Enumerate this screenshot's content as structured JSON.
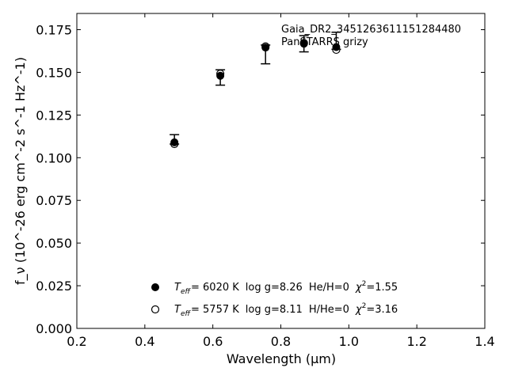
{
  "chart_data": {
    "type": "scatter",
    "xlabel": "Wavelength (μm)",
    "ylabel": "f_ν (10^-26 erg cm^-2 s^-1 Hz^-1)",
    "xlim": [
      0.2,
      1.4
    ],
    "ylim": [
      0.0,
      0.1845
    ],
    "x_ticks": [
      0.2,
      0.4,
      0.6,
      0.8,
      1.0,
      1.2,
      1.4
    ],
    "x_tick_labels": [
      "0.2",
      "0.4",
      "0.6",
      "0.8",
      "1.0",
      "1.2",
      "1.4"
    ],
    "y_ticks": [
      0.0,
      0.025,
      0.05,
      0.075,
      0.1,
      0.125,
      0.15,
      0.175
    ],
    "y_tick_labels": [
      "0.000",
      "0.025",
      "0.050",
      "0.075",
      "0.100",
      "0.125",
      "0.150",
      "0.175"
    ],
    "grid": false,
    "annotations": [
      "Gaia_DR2_3451263611151284480",
      "PanSTARRS grizy"
    ],
    "observed": {
      "x": [
        0.487,
        0.622,
        0.755,
        0.868,
        0.963
      ],
      "y": [
        0.11,
        0.147,
        0.164,
        0.1675,
        0.1685
      ],
      "yerr_low": [
        0.002,
        0.0045,
        0.009,
        0.0055,
        0.005
      ],
      "yerr_high": [
        0.0035,
        0.0045,
        0.002,
        0.004,
        0.005
      ]
    },
    "series": [
      {
        "marker": "filled-circle",
        "legend": {
          "teff_label": "T",
          "teff_sub": "eff",
          "teff_value": "=  6020 K",
          "logg": "log g=8.26",
          "comp": "He/H=0",
          "chi_symbol": "χ",
          "chi_exp": "2",
          "chi_value": "=1.55"
        },
        "x": [
          0.487,
          0.622,
          0.755,
          0.868,
          0.963
        ],
        "y": [
          0.109,
          0.148,
          0.1645,
          0.1668,
          0.1648
        ]
      },
      {
        "marker": "open-circle",
        "legend": {
          "teff_label": "T",
          "teff_sub": "eff",
          "teff_value": "=  5757 K",
          "logg": "log g=8.11",
          "comp": "H/He=0",
          "chi_symbol": "χ",
          "chi_exp": "2",
          "chi_value": "=3.16"
        },
        "x": [
          0.487,
          0.622,
          0.755,
          0.868,
          0.963
        ],
        "y": [
          0.108,
          0.1492,
          0.1652,
          0.1672,
          0.1632
        ]
      }
    ]
  }
}
